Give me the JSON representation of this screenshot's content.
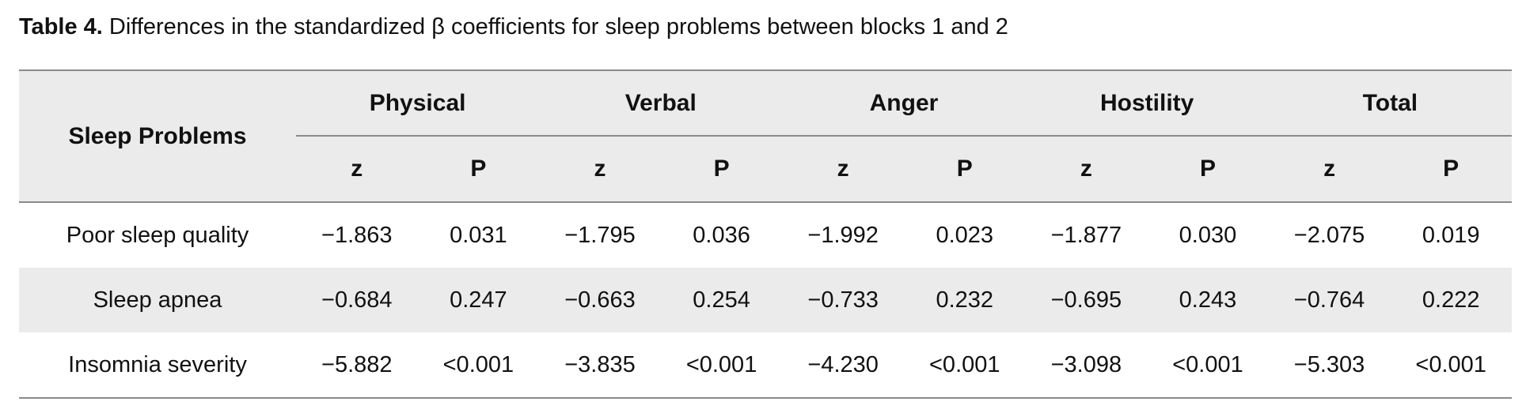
{
  "caption": {
    "label": "Table 4.",
    "text": " Differences in the standardized β coefficients for sleep problems between blocks 1 and 2"
  },
  "header": {
    "row_label": "Sleep Problems",
    "groups": [
      "Physical",
      "Verbal",
      "Anger",
      "Hostility",
      "Total"
    ],
    "sub_z": "z",
    "sub_p": "P"
  },
  "rows": [
    {
      "label": "Poor sleep quality",
      "values": [
        "−1.863",
        "0.031",
        "−1.795",
        "0.036",
        "−1.992",
        "0.023",
        "−1.877",
        "0.030",
        "−2.075",
        "0.019"
      ]
    },
    {
      "label": "Sleep apnea",
      "values": [
        "−0.684",
        "0.247",
        "−0.663",
        "0.254",
        "−0.733",
        "0.232",
        "−0.695",
        "0.243",
        "−0.764",
        "0.222"
      ]
    },
    {
      "label": "Insomnia severity",
      "values": [
        "−5.882",
        "<0.001",
        "−3.835",
        "<0.001",
        "−4.230",
        "<0.001",
        "−3.098",
        "<0.001",
        "−5.303",
        "<0.001"
      ]
    }
  ]
}
